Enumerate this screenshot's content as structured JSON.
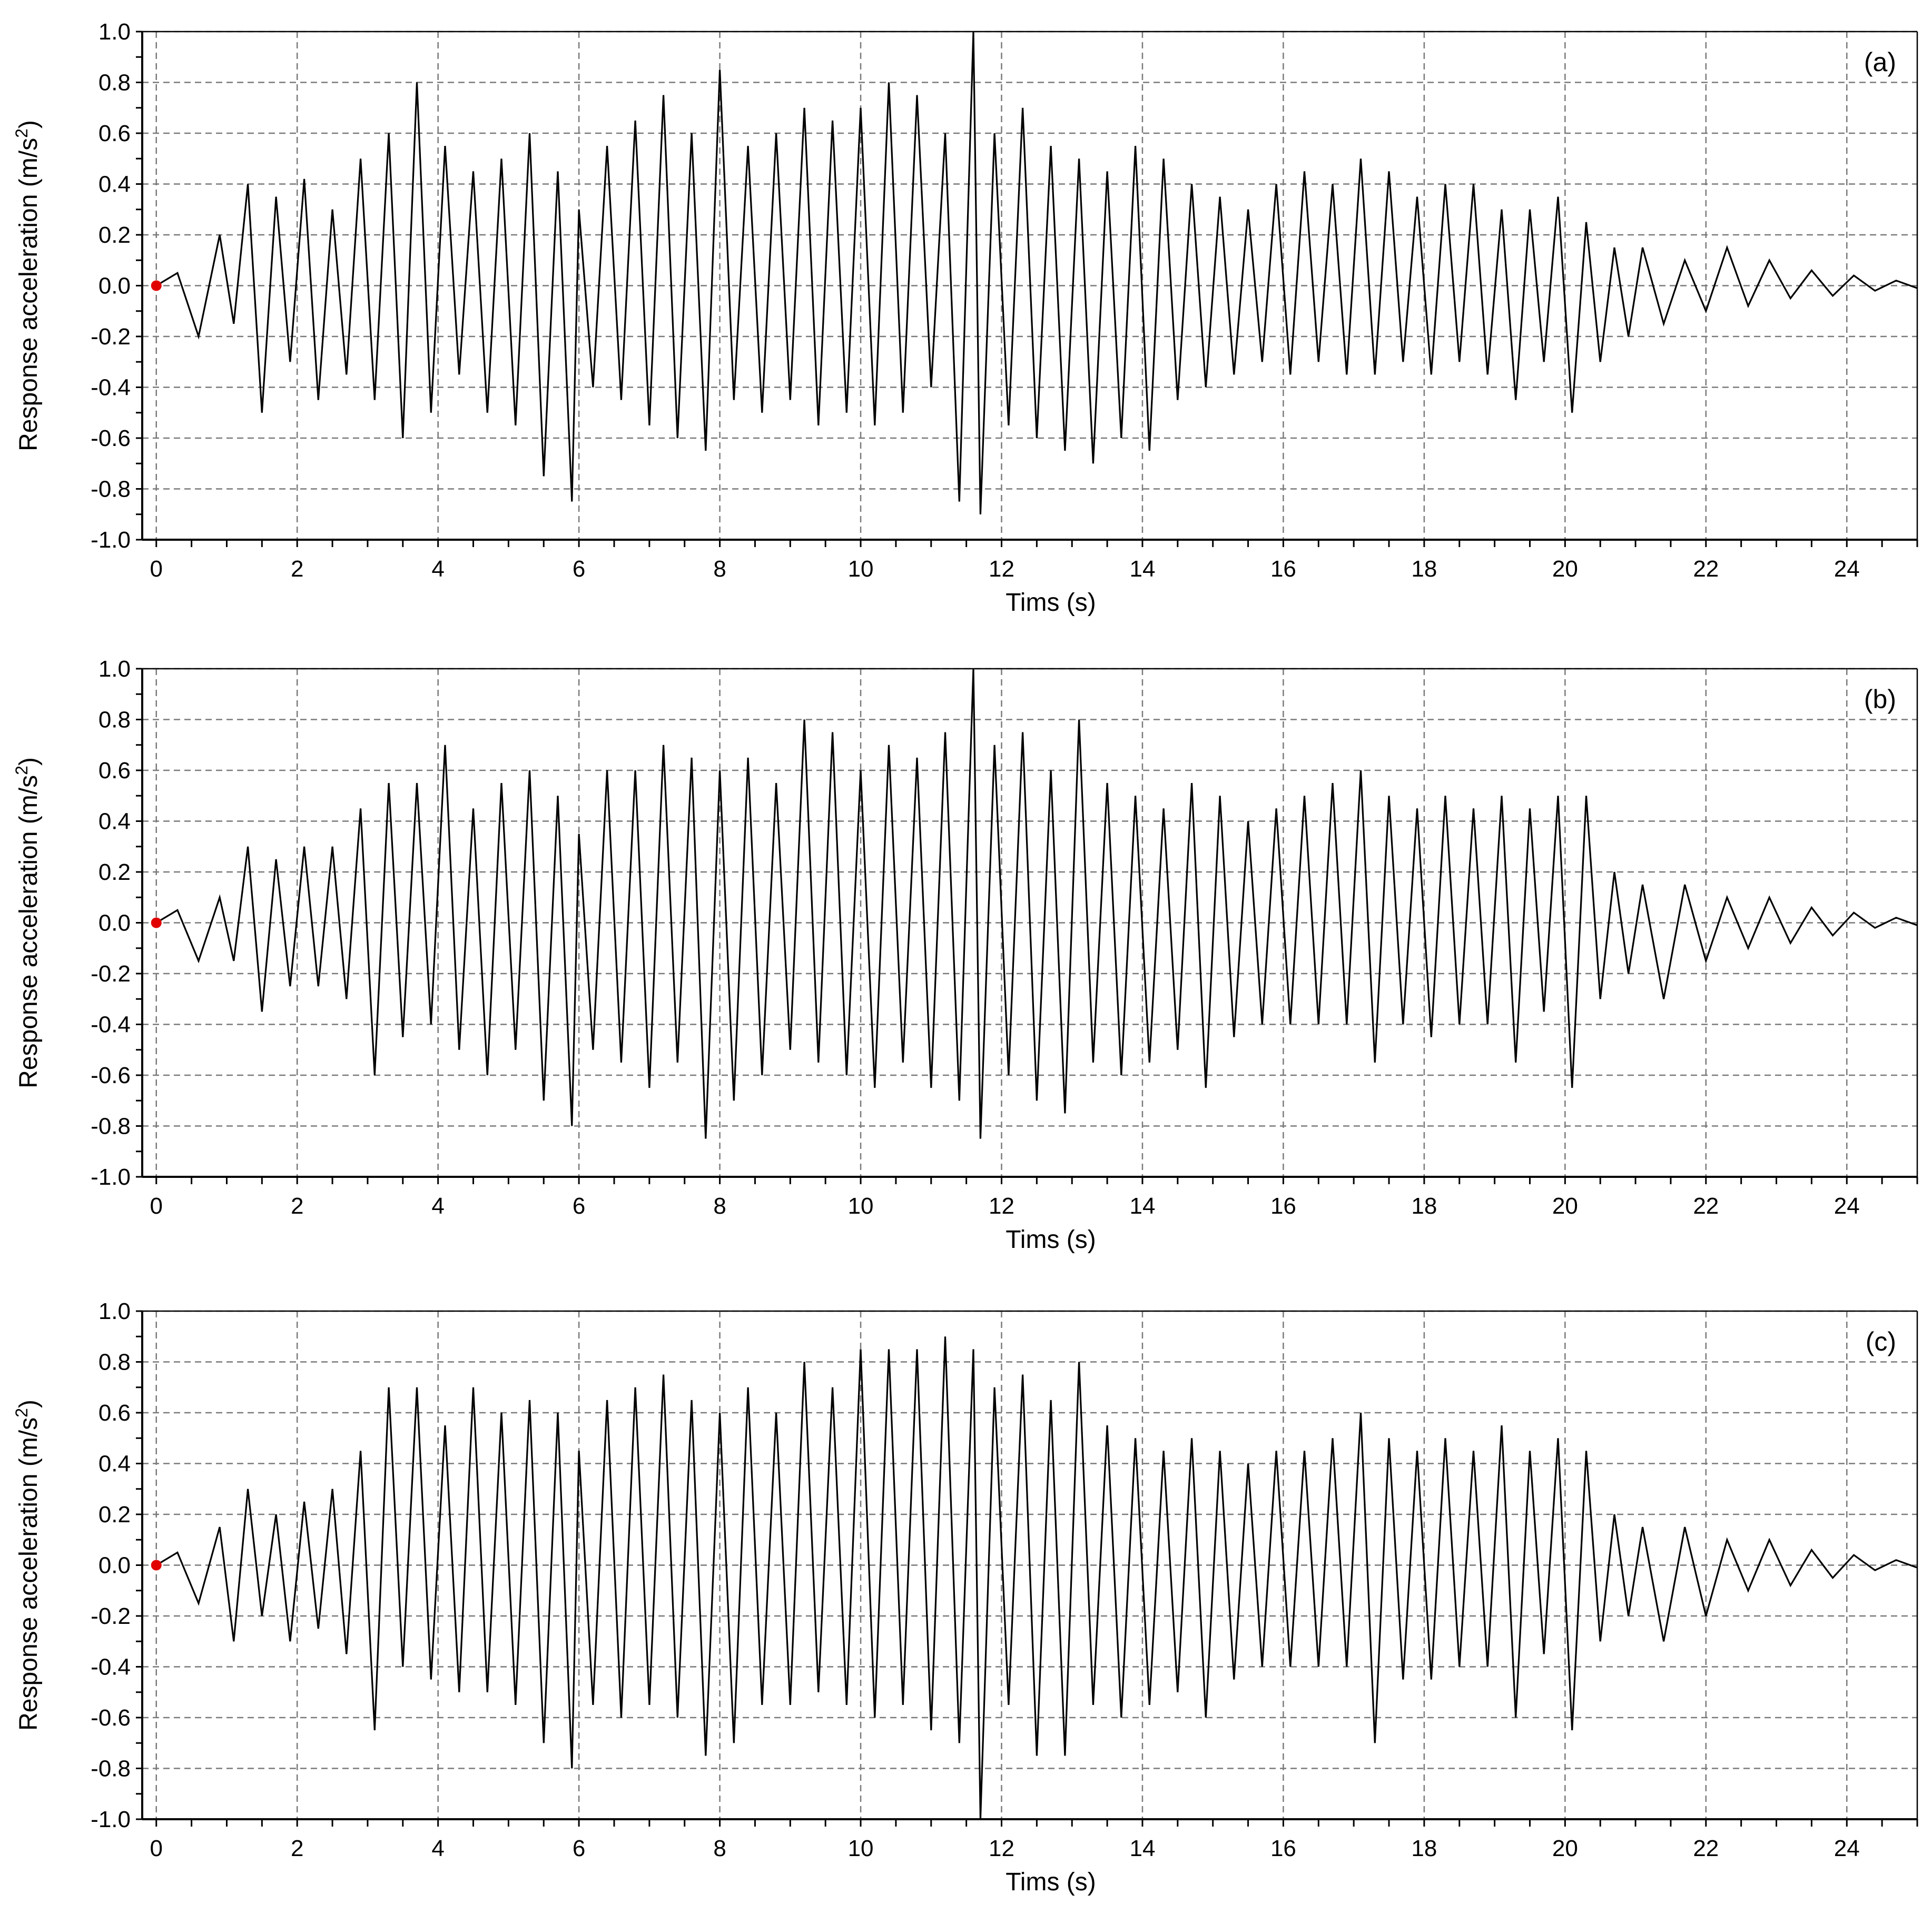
{
  "chart_data": [
    {
      "type": "line",
      "panel_label": "(a)",
      "xlabel": "Tims (s)",
      "ylabel": "Response acceleration (m/s²)",
      "ylabel_main": "Response acceleration (m/s",
      "ylabel_sup": "2",
      "ylabel_end": ")",
      "xlim": [
        -0.2,
        25
      ],
      "ylim": [
        -1.0,
        1.0
      ],
      "x_ticks": [
        0,
        2,
        4,
        6,
        8,
        10,
        12,
        14,
        16,
        18,
        20,
        22,
        24
      ],
      "y_ticks": [
        1.0,
        0.8,
        0.6,
        0.4,
        0.2,
        0.0,
        -0.2,
        -0.4,
        -0.6,
        -0.8,
        -1.0
      ],
      "y_tick_labels": [
        "1.0",
        "0.8",
        "0.6",
        "0.4",
        "0.2",
        "0.0",
        "-0.2",
        "-0.4",
        "-0.6",
        "-0.8",
        "-1.0"
      ],
      "grid": true,
      "marker": {
        "x": 0,
        "y": 0,
        "color": "#e00000"
      },
      "series": [
        {
          "x": [
            0,
            0.3,
            0.6,
            0.9,
            1.1,
            1.3,
            1.5,
            1.7,
            1.9,
            2.1,
            2.3,
            2.5,
            2.7,
            2.9,
            3.1,
            3.3,
            3.5,
            3.7,
            3.9,
            4.1,
            4.3,
            4.5,
            4.7,
            4.9,
            5.1,
            5.3,
            5.5,
            5.7,
            5.9,
            6.0,
            6.2,
            6.4,
            6.6,
            6.8,
            7.0,
            7.2,
            7.4,
            7.6,
            7.8,
            8.0,
            8.2,
            8.4,
            8.6,
            8.8,
            9.0,
            9.2,
            9.4,
            9.6,
            9.8,
            10.0,
            10.2,
            10.4,
            10.6,
            10.8,
            11.0,
            11.2,
            11.4,
            11.6,
            11.7,
            11.9,
            12.1,
            12.3,
            12.5,
            12.7,
            12.9,
            13.1,
            13.3,
            13.5,
            13.7,
            13.9,
            14.1,
            14.3,
            14.5,
            14.7,
            14.9,
            15.1,
            15.3,
            15.5,
            15.7,
            15.9,
            16.1,
            16.3,
            16.5,
            16.7,
            16.9,
            17.1,
            17.3,
            17.5,
            17.7,
            17.9,
            18.1,
            18.3,
            18.5,
            18.7,
            18.9,
            19.1,
            19.3,
            19.5,
            19.7,
            19.9,
            20.1,
            20.3,
            20.5,
            20.7,
            20.9,
            21.1,
            21.4,
            21.7,
            22.0,
            22.3,
            22.6,
            22.9,
            23.2,
            23.5,
            23.8,
            24.1,
            24.4,
            24.7,
            25.0
          ],
          "y": [
            0,
            0.05,
            -0.2,
            0.2,
            -0.15,
            0.4,
            -0.5,
            0.35,
            -0.3,
            0.42,
            -0.45,
            0.3,
            -0.35,
            0.5,
            -0.45,
            0.6,
            -0.6,
            0.8,
            -0.5,
            0.55,
            -0.35,
            0.45,
            -0.5,
            0.5,
            -0.55,
            0.6,
            -0.75,
            0.45,
            -0.85,
            0.3,
            -0.4,
            0.55,
            -0.45,
            0.65,
            -0.55,
            0.75,
            -0.6,
            0.6,
            -0.65,
            0.85,
            -0.45,
            0.55,
            -0.5,
            0.6,
            -0.45,
            0.7,
            -0.55,
            0.65,
            -0.5,
            0.7,
            -0.55,
            0.8,
            -0.5,
            0.75,
            -0.4,
            0.6,
            -0.85,
            1.0,
            -0.9,
            0.6,
            -0.55,
            0.7,
            -0.6,
            0.55,
            -0.65,
            0.5,
            -0.7,
            0.45,
            -0.6,
            0.55,
            -0.65,
            0.5,
            -0.45,
            0.4,
            -0.4,
            0.35,
            -0.35,
            0.3,
            -0.3,
            0.4,
            -0.35,
            0.45,
            -0.3,
            0.4,
            -0.35,
            0.5,
            -0.35,
            0.45,
            -0.3,
            0.35,
            -0.35,
            0.4,
            -0.3,
            0.4,
            -0.35,
            0.3,
            -0.45,
            0.3,
            -0.3,
            0.35,
            -0.5,
            0.25,
            -0.3,
            0.15,
            -0.2,
            0.15,
            -0.15,
            0.1,
            -0.1,
            0.15,
            -0.08,
            0.1,
            -0.05,
            0.06,
            -0.04,
            0.04,
            -0.02,
            0.02,
            -0.01
          ]
        }
      ]
    },
    {
      "type": "line",
      "panel_label": "(b)",
      "xlabel": "Tims (s)",
      "ylabel": "Response acceleration (m/s²)",
      "ylabel_main": "Response acceleration (m/s",
      "ylabel_sup": "2",
      "ylabel_end": ")",
      "xlim": [
        -0.2,
        25
      ],
      "ylim": [
        -1.0,
        1.0
      ],
      "x_ticks": [
        0,
        2,
        4,
        6,
        8,
        10,
        12,
        14,
        16,
        18,
        20,
        22,
        24
      ],
      "y_ticks": [
        1.0,
        0.8,
        0.6,
        0.4,
        0.2,
        0.0,
        -0.2,
        -0.4,
        -0.6,
        -0.8,
        -1.0
      ],
      "y_tick_labels": [
        "1.0",
        "0.8",
        "0.6",
        "0.4",
        "0.2",
        "0.0",
        "-0.2",
        "-0.4",
        "-0.6",
        "-0.8",
        "-1.0"
      ],
      "grid": true,
      "marker": {
        "x": 0,
        "y": 0,
        "color": "#e00000"
      },
      "series": [
        {
          "x": [
            0,
            0.3,
            0.6,
            0.9,
            1.1,
            1.3,
            1.5,
            1.7,
            1.9,
            2.1,
            2.3,
            2.5,
            2.7,
            2.9,
            3.1,
            3.3,
            3.5,
            3.7,
            3.9,
            4.1,
            4.3,
            4.5,
            4.7,
            4.9,
            5.1,
            5.3,
            5.5,
            5.7,
            5.9,
            6.0,
            6.2,
            6.4,
            6.6,
            6.8,
            7.0,
            7.2,
            7.4,
            7.6,
            7.8,
            8.0,
            8.2,
            8.4,
            8.6,
            8.8,
            9.0,
            9.2,
            9.4,
            9.6,
            9.8,
            10.0,
            10.2,
            10.4,
            10.6,
            10.8,
            11.0,
            11.2,
            11.4,
            11.6,
            11.7,
            11.9,
            12.1,
            12.3,
            12.5,
            12.7,
            12.9,
            13.1,
            13.3,
            13.5,
            13.7,
            13.9,
            14.1,
            14.3,
            14.5,
            14.7,
            14.9,
            15.1,
            15.3,
            15.5,
            15.7,
            15.9,
            16.1,
            16.3,
            16.5,
            16.7,
            16.9,
            17.1,
            17.3,
            17.5,
            17.7,
            17.9,
            18.1,
            18.3,
            18.5,
            18.7,
            18.9,
            19.1,
            19.3,
            19.5,
            19.7,
            19.9,
            20.1,
            20.3,
            20.5,
            20.7,
            20.9,
            21.1,
            21.4,
            21.7,
            22.0,
            22.3,
            22.6,
            22.9,
            23.2,
            23.5,
            23.8,
            24.1,
            24.4,
            24.7,
            25.0
          ],
          "y": [
            0,
            0.05,
            -0.15,
            0.1,
            -0.15,
            0.3,
            -0.35,
            0.25,
            -0.25,
            0.3,
            -0.25,
            0.3,
            -0.3,
            0.45,
            -0.6,
            0.55,
            -0.45,
            0.55,
            -0.4,
            0.7,
            -0.5,
            0.45,
            -0.6,
            0.55,
            -0.5,
            0.6,
            -0.7,
            0.5,
            -0.8,
            0.35,
            -0.5,
            0.6,
            -0.55,
            0.6,
            -0.65,
            0.7,
            -0.55,
            0.65,
            -0.85,
            0.6,
            -0.7,
            0.65,
            -0.6,
            0.55,
            -0.5,
            0.8,
            -0.55,
            0.75,
            -0.6,
            0.6,
            -0.65,
            0.7,
            -0.55,
            0.65,
            -0.65,
            0.75,
            -0.7,
            1.0,
            -0.85,
            0.7,
            -0.6,
            0.75,
            -0.7,
            0.6,
            -0.75,
            0.8,
            -0.55,
            0.55,
            -0.6,
            0.5,
            -0.55,
            0.45,
            -0.5,
            0.55,
            -0.65,
            0.5,
            -0.45,
            0.4,
            -0.4,
            0.45,
            -0.4,
            0.5,
            -0.4,
            0.55,
            -0.4,
            0.6,
            -0.55,
            0.5,
            -0.4,
            0.45,
            -0.45,
            0.5,
            -0.4,
            0.45,
            -0.4,
            0.5,
            -0.55,
            0.45,
            -0.35,
            0.5,
            -0.65,
            0.5,
            -0.3,
            0.2,
            -0.2,
            0.15,
            -0.3,
            0.15,
            -0.15,
            0.1,
            -0.1,
            0.1,
            -0.08,
            0.06,
            -0.05,
            0.04,
            -0.02,
            0.02,
            -0.01
          ]
        }
      ]
    },
    {
      "type": "line",
      "panel_label": "(c)",
      "xlabel": "Tims (s)",
      "ylabel": "Response acceleration (m/s²)",
      "ylabel_main": "Response acceleration (m/s",
      "ylabel_sup": "2",
      "ylabel_end": ")",
      "xlim": [
        -0.2,
        25
      ],
      "ylim": [
        -1.0,
        1.0
      ],
      "x_ticks": [
        0,
        2,
        4,
        6,
        8,
        10,
        12,
        14,
        16,
        18,
        20,
        22,
        24
      ],
      "y_ticks": [
        1.0,
        0.8,
        0.6,
        0.4,
        0.2,
        0.0,
        -0.2,
        -0.4,
        -0.6,
        -0.8,
        -1.0
      ],
      "y_tick_labels": [
        "1.0",
        "0.8",
        "0.6",
        "0.4",
        "0.2",
        "0.0",
        "-0.2",
        "-0.4",
        "-0.6",
        "-0.8",
        "-1.0"
      ],
      "grid": true,
      "marker": {
        "x": 0,
        "y": 0,
        "color": "#e00000"
      },
      "series": [
        {
          "x": [
            0,
            0.3,
            0.6,
            0.9,
            1.1,
            1.3,
            1.5,
            1.7,
            1.9,
            2.1,
            2.3,
            2.5,
            2.7,
            2.9,
            3.1,
            3.3,
            3.5,
            3.7,
            3.9,
            4.1,
            4.3,
            4.5,
            4.7,
            4.9,
            5.1,
            5.3,
            5.5,
            5.7,
            5.9,
            6.0,
            6.2,
            6.4,
            6.6,
            6.8,
            7.0,
            7.2,
            7.4,
            7.6,
            7.8,
            8.0,
            8.2,
            8.4,
            8.6,
            8.8,
            9.0,
            9.2,
            9.4,
            9.6,
            9.8,
            10.0,
            10.2,
            10.4,
            10.6,
            10.8,
            11.0,
            11.2,
            11.4,
            11.6,
            11.7,
            11.9,
            12.1,
            12.3,
            12.5,
            12.7,
            12.9,
            13.1,
            13.3,
            13.5,
            13.7,
            13.9,
            14.1,
            14.3,
            14.5,
            14.7,
            14.9,
            15.1,
            15.3,
            15.5,
            15.7,
            15.9,
            16.1,
            16.3,
            16.5,
            16.7,
            16.9,
            17.1,
            17.3,
            17.5,
            17.7,
            17.9,
            18.1,
            18.3,
            18.5,
            18.7,
            18.9,
            19.1,
            19.3,
            19.5,
            19.7,
            19.9,
            20.1,
            20.3,
            20.5,
            20.7,
            20.9,
            21.1,
            21.4,
            21.7,
            22.0,
            22.3,
            22.6,
            22.9,
            23.2,
            23.5,
            23.8,
            24.1,
            24.4,
            24.7,
            25.0
          ],
          "y": [
            0,
            0.05,
            -0.15,
            0.15,
            -0.3,
            0.3,
            -0.2,
            0.2,
            -0.3,
            0.25,
            -0.25,
            0.3,
            -0.35,
            0.45,
            -0.65,
            0.7,
            -0.4,
            0.7,
            -0.45,
            0.55,
            -0.5,
            0.7,
            -0.5,
            0.6,
            -0.55,
            0.65,
            -0.7,
            0.6,
            -0.8,
            0.45,
            -0.55,
            0.65,
            -0.6,
            0.7,
            -0.55,
            0.75,
            -0.6,
            0.65,
            -0.75,
            0.6,
            -0.7,
            0.7,
            -0.55,
            0.6,
            -0.55,
            0.8,
            -0.5,
            0.7,
            -0.55,
            0.85,
            -0.6,
            0.85,
            -0.55,
            0.85,
            -0.65,
            0.9,
            -0.7,
            0.85,
            -1.0,
            0.7,
            -0.55,
            0.75,
            -0.75,
            0.65,
            -0.75,
            0.8,
            -0.55,
            0.55,
            -0.6,
            0.5,
            -0.55,
            0.45,
            -0.5,
            0.5,
            -0.6,
            0.45,
            -0.45,
            0.4,
            -0.4,
            0.45,
            -0.4,
            0.45,
            -0.4,
            0.5,
            -0.4,
            0.6,
            -0.7,
            0.5,
            -0.45,
            0.45,
            -0.45,
            0.5,
            -0.4,
            0.45,
            -0.4,
            0.55,
            -0.6,
            0.45,
            -0.35,
            0.5,
            -0.65,
            0.45,
            -0.3,
            0.2,
            -0.2,
            0.15,
            -0.3,
            0.15,
            -0.2,
            0.1,
            -0.1,
            0.1,
            -0.08,
            0.06,
            -0.05,
            0.04,
            -0.02,
            0.02,
            -0.01
          ]
        }
      ]
    }
  ]
}
